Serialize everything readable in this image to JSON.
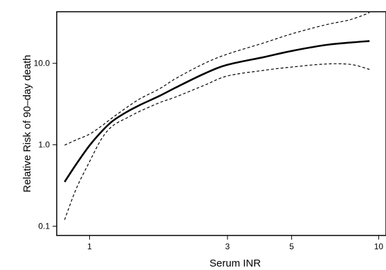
{
  "chart_data": {
    "type": "line",
    "title": "",
    "xlabel": "Serum INR",
    "ylabel": "Relative Risk of 90–day death",
    "xscale": "log",
    "yscale": "log",
    "xlim": [
      0.77,
      10.6
    ],
    "ylim": [
      0.077,
      43
    ],
    "xticks": [
      {
        "value": 1,
        "label": "1"
      },
      {
        "value": 3,
        "label": "3"
      },
      {
        "value": 5,
        "label": "5"
      },
      {
        "value": 10,
        "label": "10"
      }
    ],
    "yticks": [
      {
        "value": 0.1,
        "label": "0.1"
      },
      {
        "value": 1,
        "label": "1.0"
      },
      {
        "value": 10,
        "label": "10.0"
      }
    ],
    "grid": false,
    "legend": "none",
    "series": [
      {
        "style": "solid",
        "x": [
          0.82,
          0.9,
          1.0,
          1.1,
          1.2,
          1.35,
          1.5,
          1.75,
          2.0,
          2.5,
          3.0,
          4.0,
          5.0,
          6.5,
          8.0,
          9.3
        ],
        "y": [
          0.35,
          0.58,
          0.98,
          1.45,
          1.95,
          2.55,
          3.1,
          4.0,
          5.1,
          7.5,
          9.6,
          11.9,
          14.2,
          16.7,
          18.0,
          18.8
        ]
      },
      {
        "style": "dashed",
        "x": [
          0.82,
          0.9,
          1.0,
          1.1,
          1.2,
          1.35,
          1.5,
          1.75,
          2.0,
          2.5,
          3.0,
          4.0,
          5.0,
          6.5,
          8.0,
          9.3
        ],
        "y": [
          0.99,
          1.15,
          1.35,
          1.7,
          2.15,
          2.9,
          3.7,
          4.9,
          6.6,
          10.0,
          13.0,
          17.8,
          23.0,
          29.5,
          34.5,
          42.0
        ]
      },
      {
        "style": "dashed",
        "x": [
          0.82,
          0.9,
          1.0,
          1.1,
          1.2,
          1.35,
          1.5,
          1.75,
          2.0,
          2.5,
          3.0,
          4.0,
          5.0,
          6.5,
          8.0,
          9.3
        ],
        "y": [
          0.12,
          0.29,
          0.62,
          1.18,
          1.7,
          2.15,
          2.6,
          3.3,
          3.9,
          5.4,
          7.0,
          8.2,
          9.0,
          9.8,
          9.7,
          8.4
        ]
      }
    ],
    "colors": {
      "line": "#000000",
      "axis": "#000000"
    }
  }
}
